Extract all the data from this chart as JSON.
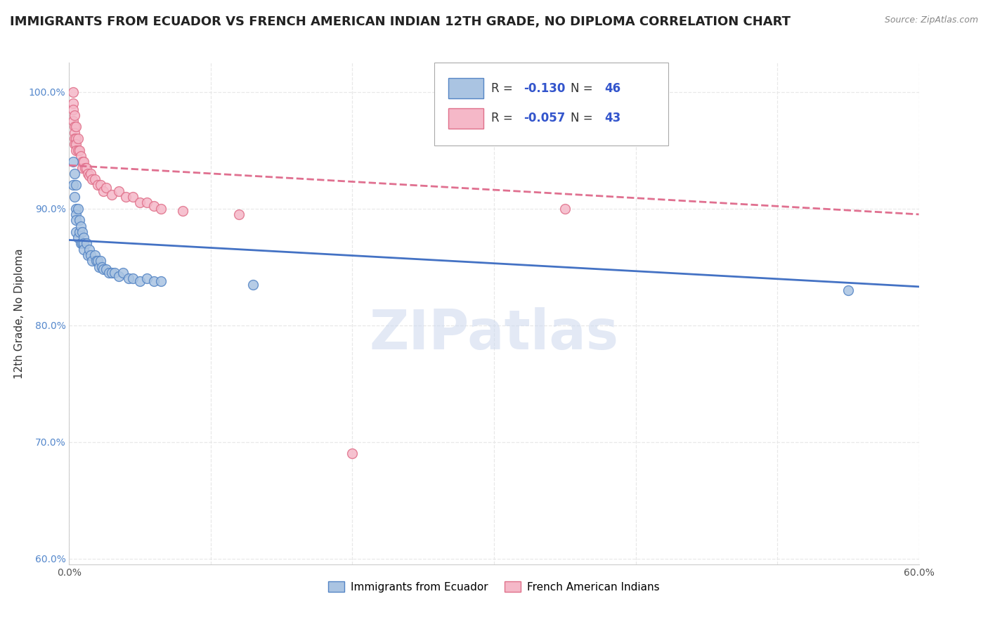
{
  "title": "IMMIGRANTS FROM ECUADOR VS FRENCH AMERICAN INDIAN 12TH GRADE, NO DIPLOMA CORRELATION CHART",
  "source": "Source: ZipAtlas.com",
  "ylabel": "12th Grade, No Diploma",
  "xlim": [
    0.0,
    0.6
  ],
  "ylim": [
    0.595,
    1.025
  ],
  "xticks": [
    0.0,
    0.1,
    0.2,
    0.3,
    0.4,
    0.5,
    0.6
  ],
  "xticklabels": [
    "0.0%",
    "",
    "",
    "",
    "",
    "",
    "60.0%"
  ],
  "yticks": [
    0.6,
    0.7,
    0.8,
    0.9,
    1.0
  ],
  "yticklabels": [
    "60.0%",
    "70.0%",
    "80.0%",
    "90.0%",
    "100.0%"
  ],
  "blue_R": -0.13,
  "blue_N": 46,
  "pink_R": -0.057,
  "pink_N": 43,
  "blue_color": "#aac4e2",
  "pink_color": "#f5b8c8",
  "blue_edge_color": "#5585c5",
  "pink_edge_color": "#e0708a",
  "blue_line_color": "#4472c4",
  "pink_line_color": "#e07090",
  "blue_label": "Immigrants from Ecuador",
  "pink_label": "French American Indians",
  "watermark": "ZIPatlas",
  "blue_scatter_x": [
    0.003,
    0.003,
    0.004,
    0.004,
    0.005,
    0.005,
    0.005,
    0.005,
    0.005,
    0.006,
    0.006,
    0.007,
    0.007,
    0.008,
    0.008,
    0.009,
    0.009,
    0.01,
    0.01,
    0.01,
    0.012,
    0.013,
    0.014,
    0.015,
    0.016,
    0.018,
    0.019,
    0.02,
    0.021,
    0.022,
    0.023,
    0.024,
    0.026,
    0.028,
    0.03,
    0.032,
    0.035,
    0.038,
    0.042,
    0.045,
    0.05,
    0.055,
    0.06,
    0.065,
    0.55,
    0.13
  ],
  "blue_scatter_y": [
    0.94,
    0.92,
    0.93,
    0.91,
    0.92,
    0.9,
    0.895,
    0.89,
    0.88,
    0.9,
    0.875,
    0.89,
    0.88,
    0.885,
    0.87,
    0.88,
    0.87,
    0.875,
    0.87,
    0.865,
    0.87,
    0.86,
    0.865,
    0.86,
    0.855,
    0.86,
    0.855,
    0.855,
    0.85,
    0.855,
    0.85,
    0.848,
    0.848,
    0.845,
    0.845,
    0.845,
    0.842,
    0.845,
    0.84,
    0.84,
    0.838,
    0.84,
    0.838,
    0.838,
    0.83,
    0.835
  ],
  "pink_scatter_x": [
    0.003,
    0.003,
    0.003,
    0.003,
    0.004,
    0.004,
    0.004,
    0.004,
    0.004,
    0.005,
    0.005,
    0.005,
    0.005,
    0.006,
    0.006,
    0.007,
    0.008,
    0.009,
    0.009,
    0.01,
    0.011,
    0.012,
    0.013,
    0.014,
    0.015,
    0.016,
    0.018,
    0.02,
    0.022,
    0.024,
    0.026,
    0.03,
    0.035,
    0.04,
    0.045,
    0.05,
    0.055,
    0.06,
    0.065,
    0.08,
    0.12,
    0.2,
    0.35
  ],
  "pink_scatter_y": [
    1.0,
    0.99,
    0.985,
    0.975,
    0.98,
    0.97,
    0.965,
    0.96,
    0.955,
    0.97,
    0.96,
    0.955,
    0.95,
    0.96,
    0.95,
    0.95,
    0.945,
    0.94,
    0.935,
    0.94,
    0.935,
    0.935,
    0.93,
    0.928,
    0.93,
    0.925,
    0.925,
    0.92,
    0.92,
    0.915,
    0.918,
    0.912,
    0.915,
    0.91,
    0.91,
    0.905,
    0.905,
    0.902,
    0.9,
    0.898,
    0.895,
    0.69,
    0.9
  ],
  "blue_trend_x": [
    0.0,
    0.6
  ],
  "blue_trend_y": [
    0.873,
    0.833
  ],
  "pink_trend_x": [
    0.0,
    0.6
  ],
  "pink_trend_y": [
    0.937,
    0.895
  ],
  "grid_color": "#e8e8e8",
  "background_color": "#ffffff",
  "title_fontsize": 13,
  "axis_label_fontsize": 11,
  "tick_fontsize": 10,
  "legend_R_color": "#3355cc",
  "marker_size": 100
}
